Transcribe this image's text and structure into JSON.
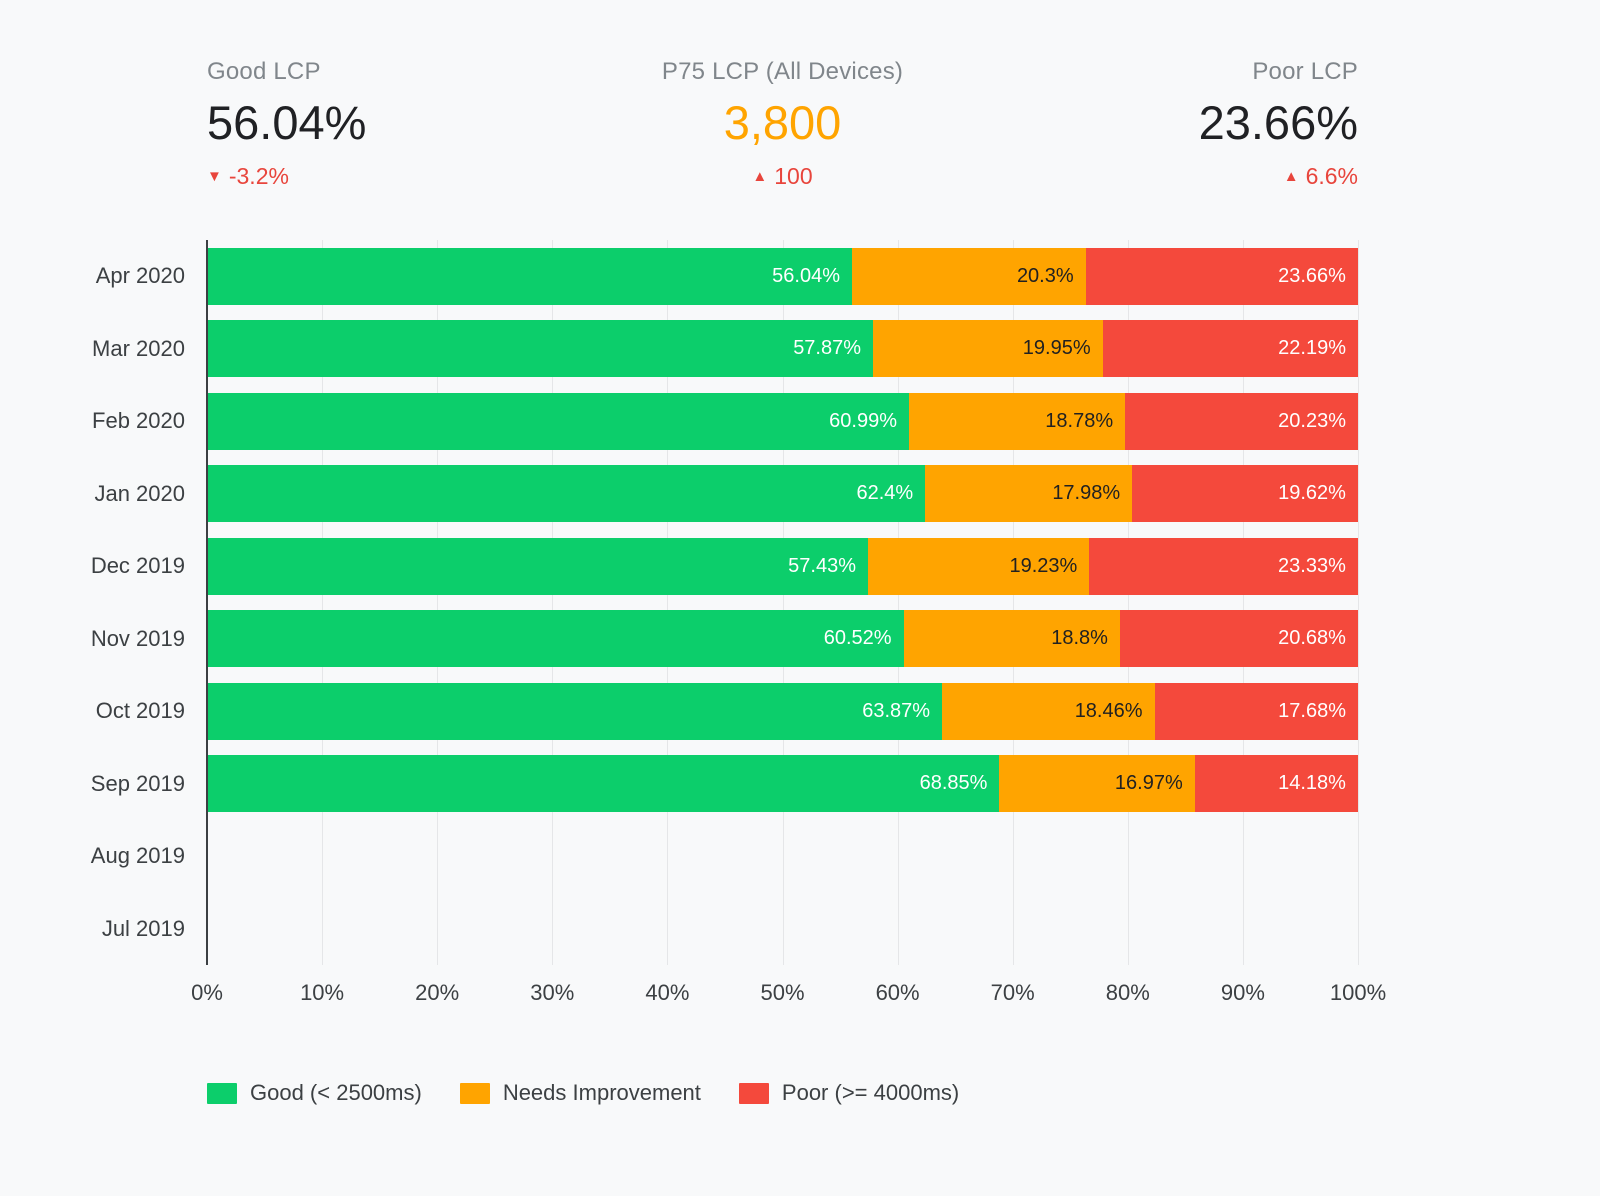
{
  "kpis": [
    {
      "label": "Good LCP",
      "value": "56.04%",
      "delta": "-3.2%",
      "delta_direction": "down",
      "delta_color": "#e8453c",
      "value_color": "#202124"
    },
    {
      "label": "P75 LCP (All Devices)",
      "value": "3,800",
      "delta": "100",
      "delta_direction": "up",
      "delta_color": "#e8453c",
      "value_color": "#ffa400"
    },
    {
      "label": "Poor LCP",
      "value": "23.66%",
      "delta": "6.6%",
      "delta_direction": "up",
      "delta_color": "#e8453c",
      "value_color": "#202124"
    }
  ],
  "chart_data": {
    "type": "bar",
    "orientation": "horizontal",
    "stacked": true,
    "unit": "%",
    "categories": [
      "Apr 2020",
      "Mar 2020",
      "Feb 2020",
      "Jan 2020",
      "Dec 2019",
      "Nov 2019",
      "Oct 2019",
      "Sep 2019",
      "Aug 2019",
      "Jul 2019"
    ],
    "series": [
      {
        "name": "Good (< 2500ms)",
        "color": "#0cce6b",
        "label_color": "#ffffff",
        "values": [
          56.04,
          57.87,
          60.99,
          62.4,
          57.43,
          60.52,
          63.87,
          68.85,
          null,
          null
        ]
      },
      {
        "name": "Needs Improvement",
        "color": "#ffa400",
        "label_color": "#212121",
        "values": [
          20.3,
          19.95,
          18.78,
          17.98,
          19.23,
          18.8,
          18.46,
          16.97,
          null,
          null
        ]
      },
      {
        "name": "Poor (>= 4000ms)",
        "color": "#f4493c",
        "label_color": "#ffffff",
        "values": [
          23.66,
          22.19,
          20.23,
          19.62,
          23.33,
          20.68,
          17.68,
          14.18,
          null,
          null
        ]
      }
    ],
    "xlim": [
      0,
      100
    ],
    "x_ticks": [
      "0%",
      "10%",
      "20%",
      "30%",
      "40%",
      "50%",
      "60%",
      "70%",
      "80%",
      "90%",
      "100%"
    ],
    "grid": true,
    "legend_position": "bottom"
  },
  "legend": [
    {
      "label": "Good (< 2500ms)",
      "color": "#0cce6b"
    },
    {
      "label": "Needs Improvement",
      "color": "#ffa400"
    },
    {
      "label": "Poor (>= 4000ms)",
      "color": "#f4493c"
    }
  ]
}
